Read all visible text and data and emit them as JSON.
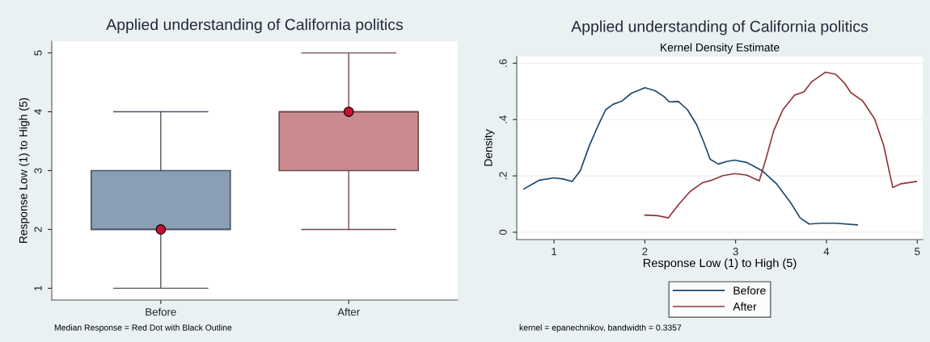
{
  "chart_data": [
    {
      "type": "box",
      "title": "Applied understanding of California politics",
      "ylabel": "Response Low (1) to High (5)",
      "categories": [
        "Before",
        "After"
      ],
      "boxes": [
        {
          "low": 1,
          "q1": 2,
          "median": 2,
          "q3": 3,
          "high": 4
        },
        {
          "low": 2,
          "q1": 3,
          "median": 4,
          "q3": 4,
          "high": 5
        }
      ],
      "colors": [
        "#8a9fb4",
        "#c98b8f"
      ],
      "series": [
        {
          "type": "scatter",
          "x": [
            "Before",
            "After"
          ],
          "values": [
            2,
            4
          ],
          "color": "#c8102e"
        }
      ],
      "ylim": [
        0.8,
        5.2
      ],
      "yticks": [
        1,
        2,
        3,
        4,
        5
      ],
      "grid": false,
      "legend": false,
      "annotations": [
        "Median Response = Red Dot with Black Outline"
      ]
    },
    {
      "type": "line",
      "title": "Applied understanding of California politics",
      "subtitle": "Kernel Density Estimate",
      "xlabel": "Response Low (1) to High (5)",
      "ylabel": "Density",
      "series": [
        {
          "name": "Before",
          "color": "#1a476f",
          "x": [
            0.67,
            0.84,
            1.0,
            1.1,
            1.2,
            1.29,
            1.39,
            1.49,
            1.57,
            1.65,
            1.75,
            1.85,
            2.0,
            2.11,
            2.21,
            2.27,
            2.37,
            2.47,
            2.57,
            2.65,
            2.72,
            2.81,
            2.9,
            2.99,
            3.12,
            3.29,
            3.45,
            3.61,
            3.71,
            3.81,
            3.94,
            4.1,
            4.34
          ],
          "values": [
            0.154,
            0.185,
            0.193,
            0.189,
            0.18,
            0.219,
            0.308,
            0.382,
            0.435,
            0.454,
            0.466,
            0.493,
            0.513,
            0.503,
            0.482,
            0.463,
            0.464,
            0.435,
            0.382,
            0.319,
            0.259,
            0.242,
            0.251,
            0.256,
            0.248,
            0.219,
            0.172,
            0.103,
            0.051,
            0.029,
            0.032,
            0.032,
            0.026
          ]
        },
        {
          "name": "After",
          "color": "#90353b",
          "x": [
            2.0,
            2.14,
            2.26,
            2.37,
            2.5,
            2.63,
            2.73,
            2.86,
            2.99,
            3.12,
            3.26,
            3.32,
            3.42,
            3.52,
            3.65,
            3.75,
            3.84,
            3.99,
            4.1,
            4.2,
            4.27,
            4.4,
            4.53,
            4.63,
            4.73,
            4.82,
            4.99
          ],
          "values": [
            0.061,
            0.059,
            0.051,
            0.098,
            0.145,
            0.175,
            0.184,
            0.201,
            0.208,
            0.203,
            0.182,
            0.245,
            0.361,
            0.435,
            0.487,
            0.498,
            0.535,
            0.568,
            0.561,
            0.529,
            0.495,
            0.466,
            0.403,
            0.308,
            0.159,
            0.172,
            0.18
          ]
        }
      ],
      "xlim": [
        0.59,
        5.06
      ],
      "xticks": [
        1,
        2,
        3,
        4,
        5
      ],
      "ylim": [
        -0.026,
        0.624
      ],
      "yticks": [
        {
          "value": 0,
          "label": "0"
        },
        {
          "value": 0.2,
          "label": ".2"
        },
        {
          "value": 0.4,
          "label": ".4"
        },
        {
          "value": 0.6,
          "label": ".6"
        }
      ],
      "grid": "y",
      "legend": "bottom",
      "marker": "none",
      "line_style": "solid",
      "annotations": [
        "kernel = epanechnikov, bandwidth = 0.3357"
      ]
    }
  ]
}
